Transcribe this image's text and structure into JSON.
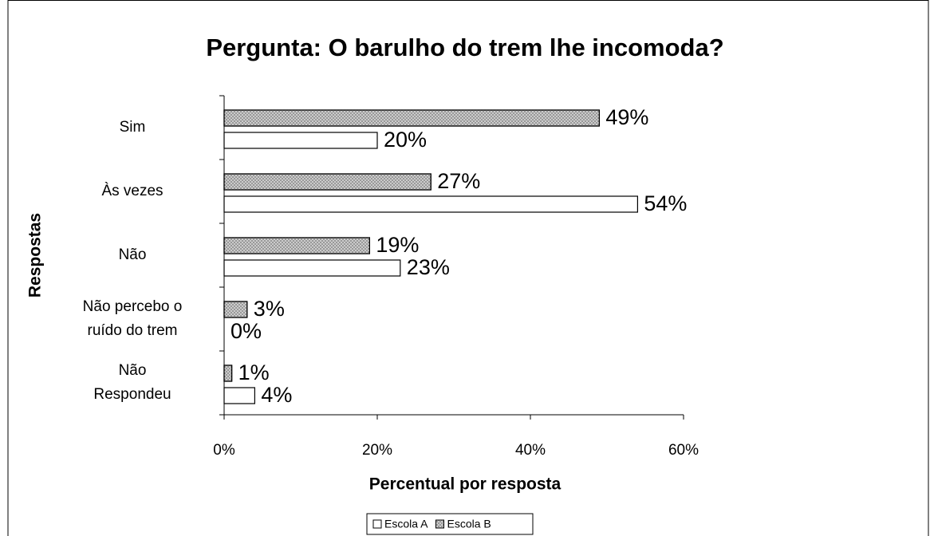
{
  "chart_data": {
    "type": "barh",
    "title": "Pergunta: O barulho do trem lhe incomoda?",
    "xlabel": "Percentual por resposta",
    "ylabel": "Respostas",
    "categories": [
      "Sim",
      "Às vezes",
      "Não",
      "Não percebo o\nruído do trem",
      "Não\nRespondeu"
    ],
    "series": [
      {
        "name": "Escola A",
        "color": "#ffffff",
        "values": [
          20,
          54,
          23,
          0,
          4
        ],
        "value_labels": [
          "20%",
          "54%",
          "23%",
          "0%",
          "4%"
        ]
      },
      {
        "name": "Escola B",
        "color": "#8c8c8c",
        "hatch": true,
        "values": [
          49,
          27,
          19,
          3,
          1
        ],
        "value_labels": [
          "49%",
          "27%",
          "19%",
          "3%",
          "1%"
        ]
      }
    ],
    "xlim": [
      0,
      60
    ],
    "xticks": [
      {
        "value": 0,
        "label": "0%"
      },
      {
        "value": 20,
        "label": "20%"
      },
      {
        "value": 40,
        "label": "40%"
      },
      {
        "value": 60,
        "label": "60%"
      }
    ],
    "legend": "bottom"
  }
}
